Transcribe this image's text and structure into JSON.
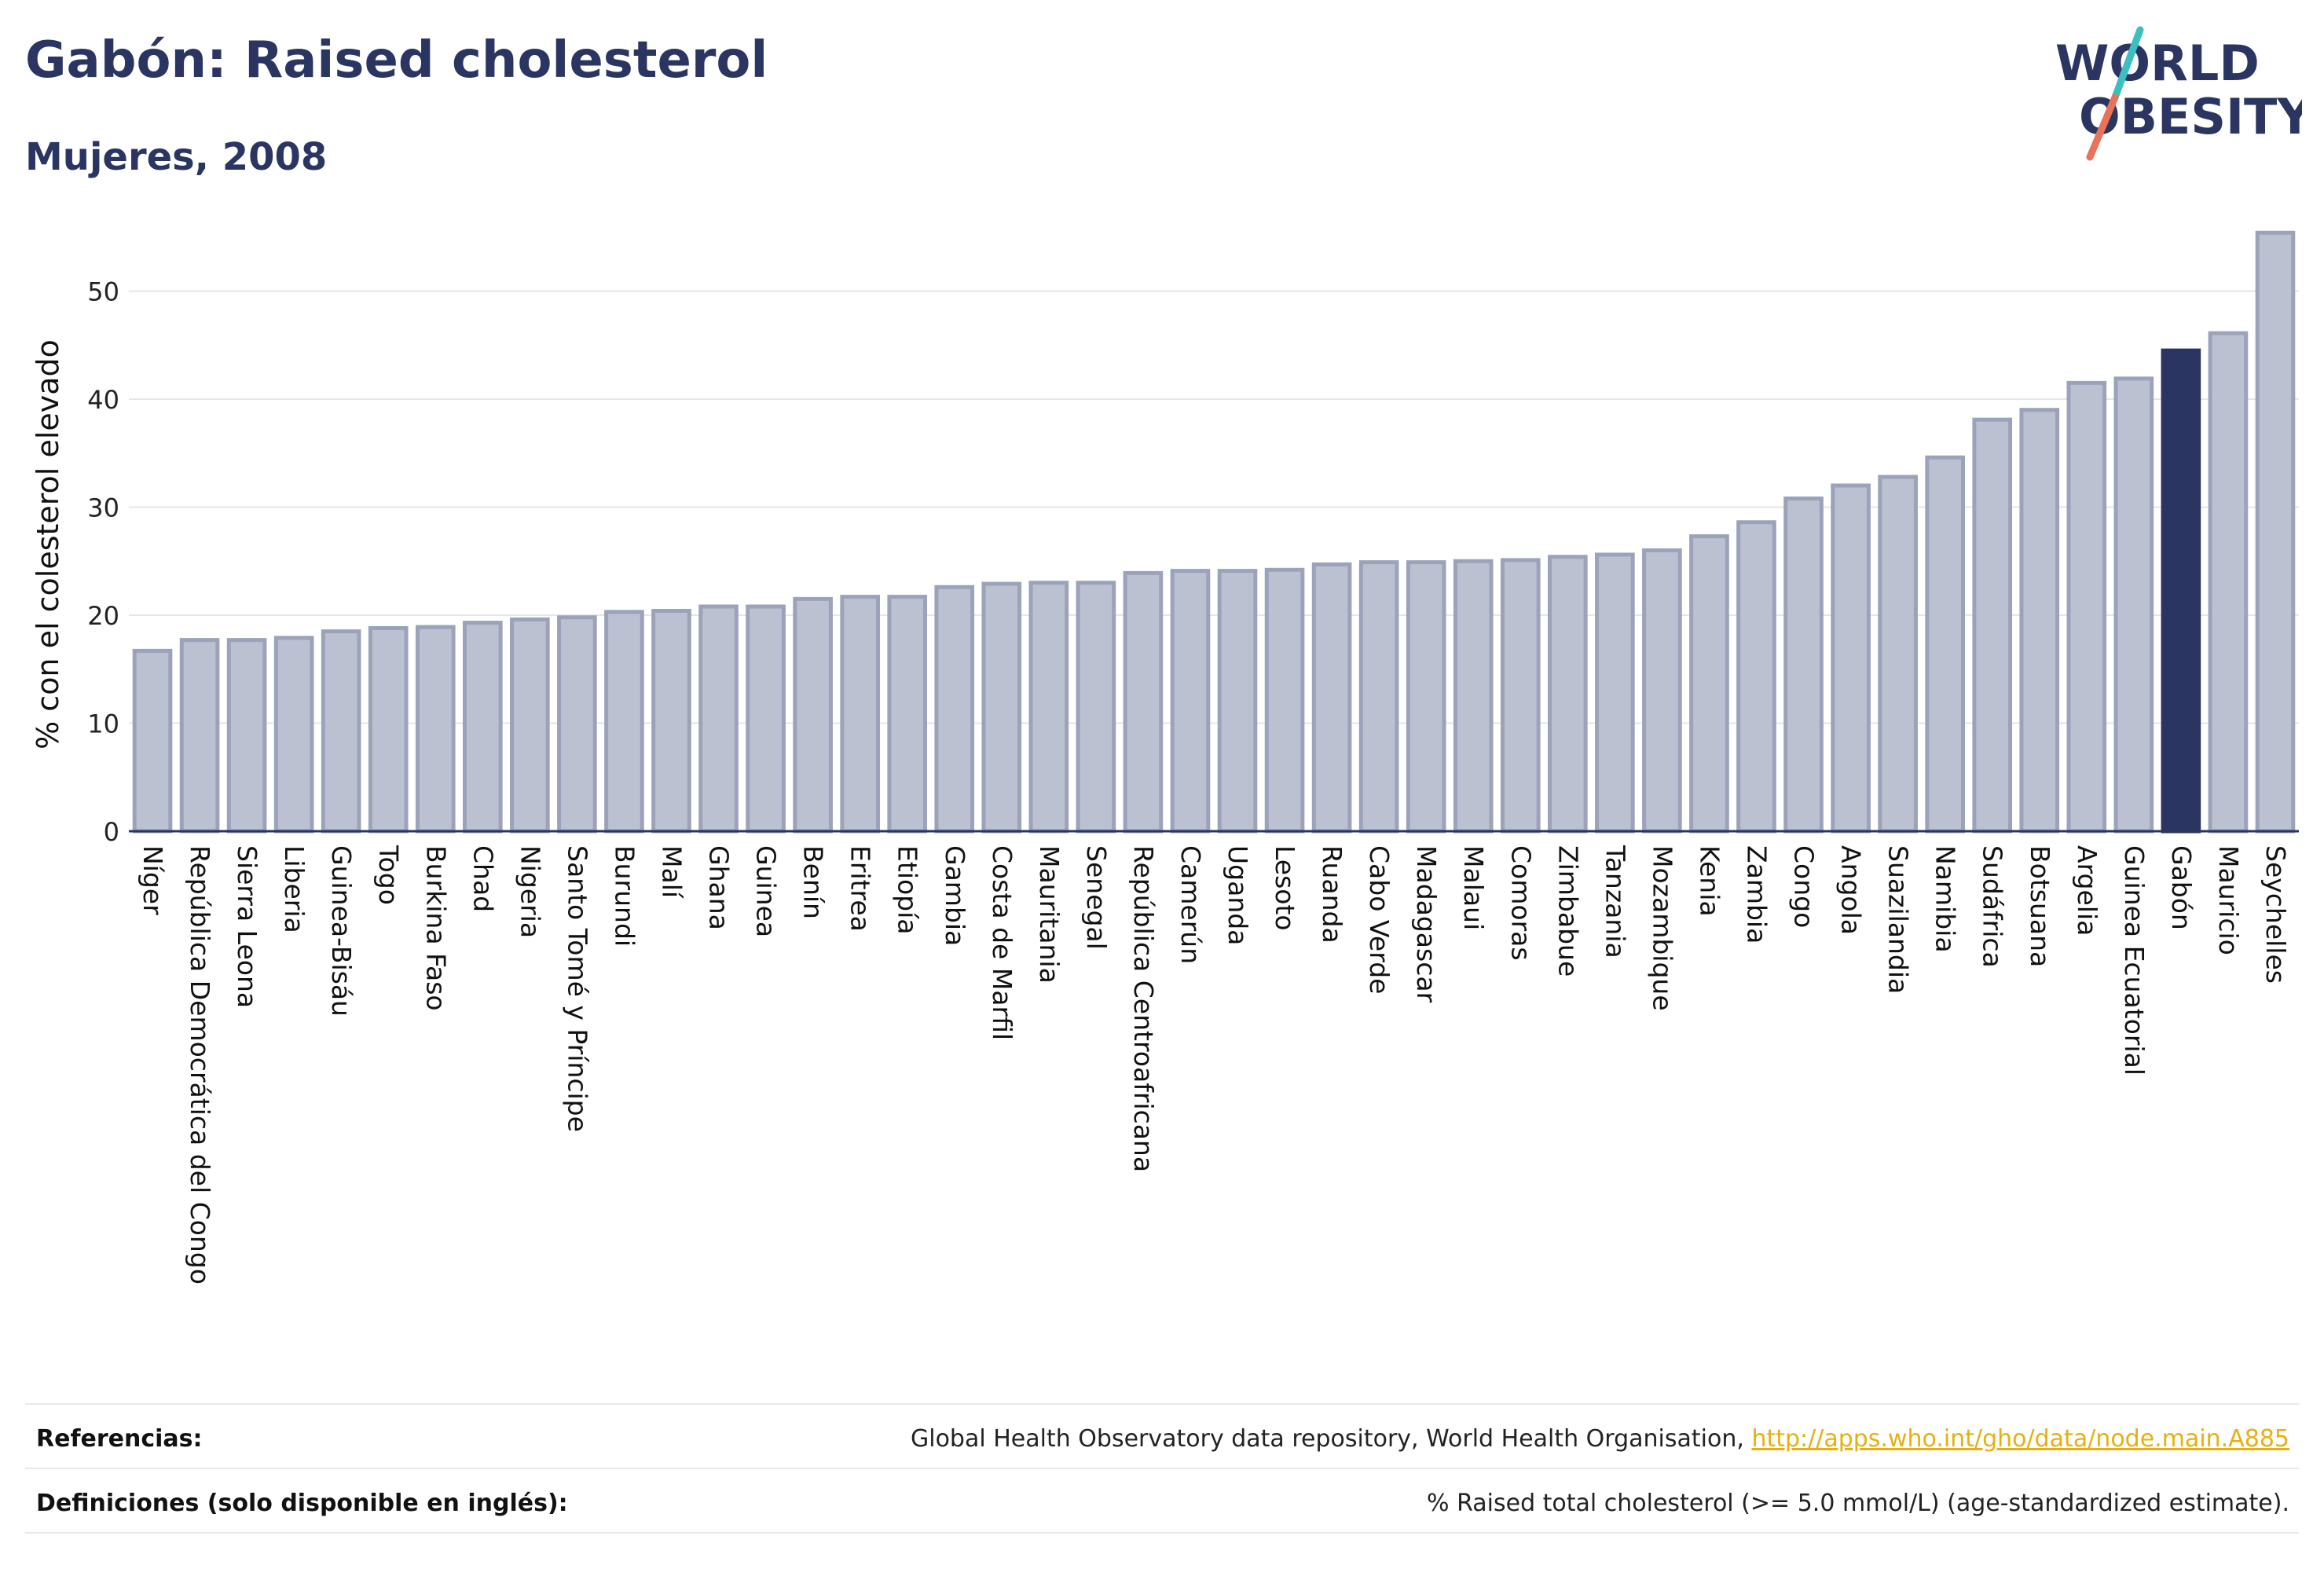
{
  "header": {
    "title": "Gabón: Raised cholesterol",
    "subtitle": "Mujeres, 2008"
  },
  "logo": {
    "line1": "WORLD",
    "line2": "OBESITY",
    "colors": {
      "text": "#2b3562",
      "slash_top": "#3bbfbf",
      "slash_bottom": "#e8735a"
    }
  },
  "chart_data": {
    "type": "bar",
    "ylabel": "% con el colesterol elevado",
    "ylim": [
      0,
      56
    ],
    "yticks": [
      0,
      10,
      20,
      30,
      40,
      50
    ],
    "grid": true,
    "highlight": "Gabón",
    "colors": {
      "bar": "#bcc1d1",
      "bar_edge": "#9ba2ba",
      "highlight": "#2b3562"
    },
    "categories": [
      "Níger",
      "República Democrática del Congo",
      "Sierra Leona",
      "Liberia",
      "Guinea-Bisáu",
      "Togo",
      "Burkina Faso",
      "Chad",
      "Nigeria",
      "Santo Tomé y Príncipe",
      "Burundi",
      "Malí",
      "Ghana",
      "Guinea",
      "Benín",
      "Eritrea",
      "Etiopía",
      "Gambia",
      "Costa de Marfil",
      "Mauritania",
      "Senegal",
      "República Centroafricana",
      "Camerún",
      "Uganda",
      "Lesoto",
      "Ruanda",
      "Cabo Verde",
      "Madagascar",
      "Malaui",
      "Comoras",
      "Zimbabue",
      "Tanzania",
      "Mozambique",
      "Kenia",
      "Zambia",
      "Congo",
      "Angola",
      "Suazilandia",
      "Namibia",
      "Sudáfrica",
      "Botsuana",
      "Argelia",
      "Guinea Ecuatorial",
      "Gabón",
      "Mauricio",
      "Seychelles"
    ],
    "values": [
      16.7,
      17.7,
      17.7,
      17.9,
      18.5,
      18.8,
      18.9,
      19.3,
      19.6,
      19.8,
      20.3,
      20.4,
      20.8,
      20.8,
      21.5,
      21.7,
      21.7,
      22.6,
      22.9,
      23.0,
      23.0,
      23.9,
      24.1,
      24.1,
      24.2,
      24.7,
      24.9,
      24.9,
      25.0,
      25.1,
      25.4,
      25.6,
      26.0,
      27.3,
      28.6,
      30.8,
      32.0,
      32.8,
      34.6,
      38.1,
      39.0,
      41.5,
      41.9,
      44.5,
      46.1,
      55.4
    ]
  },
  "footer": {
    "references_label": "Referencias:",
    "references_text": "Global Health Observatory data repository, World Health Organisation,",
    "references_link": "http://apps.who.int/gho/data/node.main.A885",
    "definitions_label": "Definiciones (solo disponible en inglés):",
    "definitions_text": "% Raised total cholesterol (>= 5.0 mmol/L) (age-standardized estimate)."
  }
}
